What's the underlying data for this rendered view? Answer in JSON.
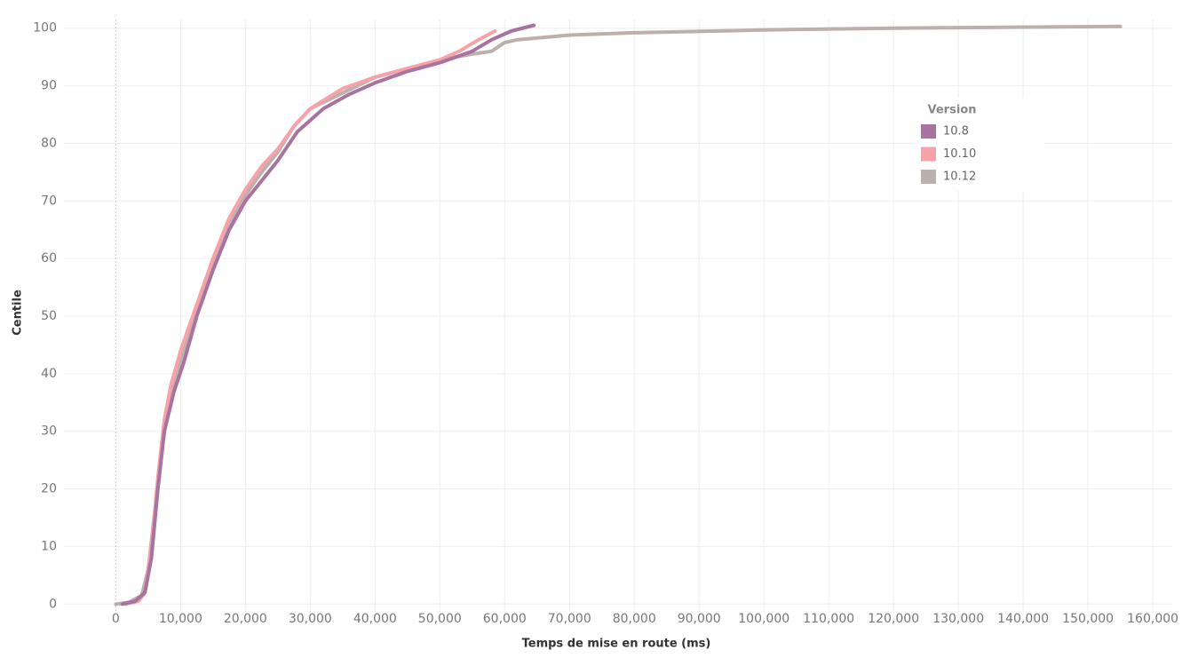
{
  "chart_data": {
    "type": "line",
    "x_label": "Temps de mise en route (ms)",
    "y_label": "Centile",
    "legend_title": "Version",
    "legend_position": "upper right",
    "grid": true,
    "xlim": [
      -8000,
      163000
    ],
    "ylim": [
      -1.5,
      101.5
    ],
    "xticks": [
      0,
      {
        "value": 10000,
        "label": "10,000"
      },
      {
        "value": 20000,
        "label": "20,000"
      },
      {
        "value": 30000,
        "label": "30,000"
      },
      {
        "value": 40000,
        "label": "40,000"
      },
      {
        "value": 50000,
        "label": "50,000"
      },
      {
        "value": 60000,
        "label": "60,000"
      },
      {
        "value": 70000,
        "label": "70,000"
      },
      {
        "value": 80000,
        "label": "80,000"
      },
      {
        "value": 90000,
        "label": "90,000"
      },
      {
        "value": 100000,
        "label": "100,000"
      },
      {
        "value": 110000,
        "label": "110,000"
      },
      {
        "value": 120000,
        "label": "120,000"
      },
      {
        "value": 130000,
        "label": "130,000"
      },
      {
        "value": 140000,
        "label": "140,000"
      },
      {
        "value": 150000,
        "label": "150,000"
      },
      {
        "value": 160000,
        "label": "160,000"
      }
    ],
    "yticks": [
      0,
      10,
      20,
      30,
      40,
      50,
      60,
      70,
      80,
      90,
      100
    ],
    "series": [
      {
        "name": "10.8",
        "color": "#a6749f",
        "x": [
          1000,
          3000,
          4500,
          5500,
          6500,
          7500,
          9000,
          10500,
          12500,
          15000,
          17500,
          20000,
          25000,
          28000,
          32000,
          36000,
          40000,
          45000,
          50000,
          55000,
          58000,
          61000,
          64500
        ],
        "values": [
          0,
          0.5,
          2,
          8,
          20,
          30,
          37,
          42,
          50,
          58,
          65,
          70,
          77,
          82,
          86,
          88.5,
          90.5,
          92.5,
          94,
          96,
          98,
          99.5,
          100.5
        ]
      },
      {
        "name": "10.10",
        "color": "#f7a1a8",
        "x": [
          1500,
          3500,
          4500,
          5500,
          6500,
          7500,
          8500,
          10000,
          12500,
          15000,
          17500,
          20000,
          22500,
          25000,
          27500,
          30000,
          35000,
          40000,
          45000,
          50000,
          53000,
          56000,
          58500
        ],
        "values": [
          0,
          0.5,
          2,
          10,
          22,
          32,
          38,
          44,
          52,
          60,
          67,
          72,
          76,
          79,
          83,
          86,
          89.5,
          91.5,
          93,
          94.5,
          96,
          98,
          99.5
        ]
      },
      {
        "name": "10.12",
        "color": "#bcb0ad",
        "x": [
          0,
          2000,
          4000,
          5000,
          6000,
          7000,
          8000,
          10000,
          12500,
          15000,
          17500,
          20000,
          22500,
          25000,
          27500,
          30000,
          40000,
          50000,
          55000,
          58000,
          60000,
          62000,
          70000,
          80000,
          100000,
          120000,
          155000
        ],
        "values": [
          0,
          0.3,
          1.5,
          6,
          16,
          26,
          34,
          42,
          51,
          59,
          66,
          71,
          75,
          78.5,
          83,
          86,
          91.5,
          94.5,
          95.5,
          96,
          97.5,
          98,
          98.8,
          99.2,
          99.7,
          100,
          100.3
        ]
      }
    ]
  }
}
